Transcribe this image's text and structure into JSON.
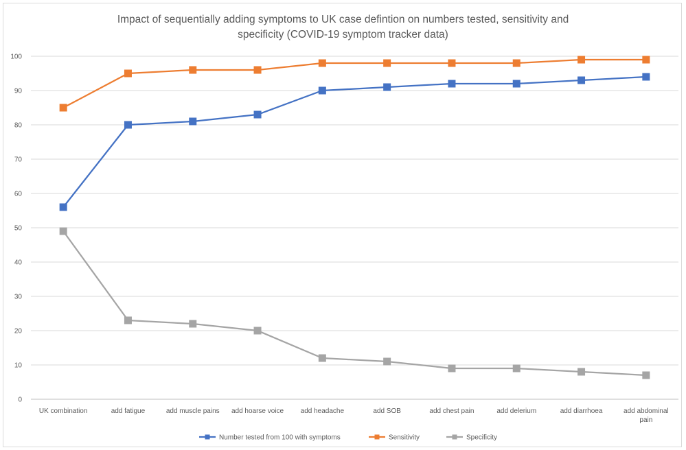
{
  "chart_data": {
    "type": "line",
    "title_line1": "Impact of sequentially adding symptoms to UK case defintion on numbers tested, sensitivity and",
    "title_line2": "specificity (COVID-19 symptom tracker data)",
    "categories": [
      [
        "UK combination"
      ],
      [
        "add fatigue"
      ],
      [
        "add muscle pains"
      ],
      [
        "add hoarse voice"
      ],
      [
        "add headache"
      ],
      [
        "add SOB"
      ],
      [
        "add chest pain"
      ],
      [
        "add delerium"
      ],
      [
        "add diarrhoea"
      ],
      [
        "add abdominal",
        "pain"
      ]
    ],
    "ylim": [
      0,
      100
    ],
    "yticks": [
      "0",
      "10",
      "20",
      "30",
      "40",
      "50",
      "60",
      "70",
      "80",
      "90",
      "100"
    ],
    "grid": true,
    "legend_position": "bottom",
    "series": [
      {
        "name": "Number tested from 100 with symptoms",
        "color": "#4472c4",
        "values": [
          56,
          80,
          81,
          83,
          90,
          91,
          92,
          92,
          93,
          94
        ]
      },
      {
        "name": "Sensitivity",
        "color": "#ed7d31",
        "values": [
          85,
          95,
          96,
          96,
          98,
          98,
          98,
          98,
          99,
          99
        ]
      },
      {
        "name": "Specificity",
        "color": "#a5a5a5",
        "values": [
          49,
          23,
          22,
          20,
          12,
          11,
          9,
          9,
          8,
          7
        ]
      }
    ]
  }
}
